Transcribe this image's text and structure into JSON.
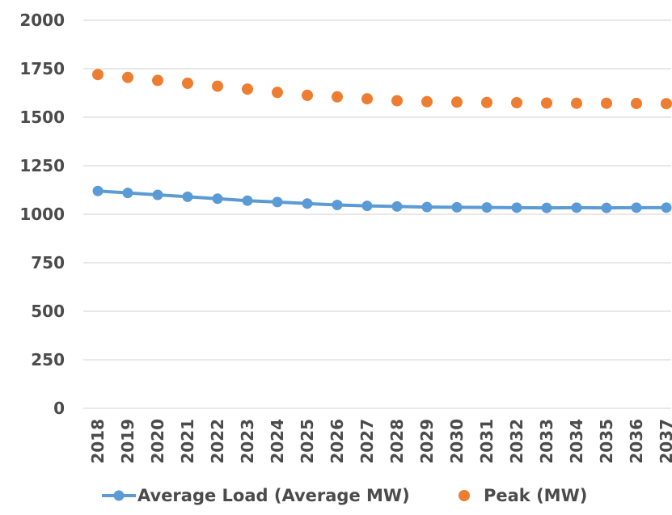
{
  "chart_data": {
    "type": "line",
    "title": "",
    "xlabel": "",
    "ylabel": "",
    "grid": true,
    "legend_position": "bottom",
    "ylim": [
      0,
      2000
    ],
    "y_ticks": [
      0,
      250,
      500,
      750,
      1000,
      1250,
      1500,
      1750,
      2000
    ],
    "categories": [
      "2018",
      "2019",
      "2020",
      "2021",
      "2022",
      "2023",
      "2024",
      "2025",
      "2026",
      "2027",
      "2028",
      "2029",
      "2030",
      "2031",
      "2032",
      "2033",
      "2034",
      "2035",
      "2036",
      "2037"
    ],
    "series": [
      {
        "name": "Average Load (Average MW)",
        "style": "line-with-markers",
        "color": "#5B9BD5",
        "values": [
          1120,
          1110,
          1100,
          1090,
          1080,
          1070,
          1063,
          1055,
          1048,
          1043,
          1040,
          1037,
          1036,
          1035,
          1034,
          1033,
          1034,
          1033,
          1034,
          1034
        ]
      },
      {
        "name": "Peak (MW)",
        "style": "markers",
        "color": "#ED7D31",
        "values": [
          1720,
          1705,
          1690,
          1675,
          1660,
          1645,
          1628,
          1613,
          1605,
          1595,
          1585,
          1580,
          1578,
          1576,
          1575,
          1573,
          1572,
          1572,
          1571,
          1570
        ]
      }
    ]
  }
}
